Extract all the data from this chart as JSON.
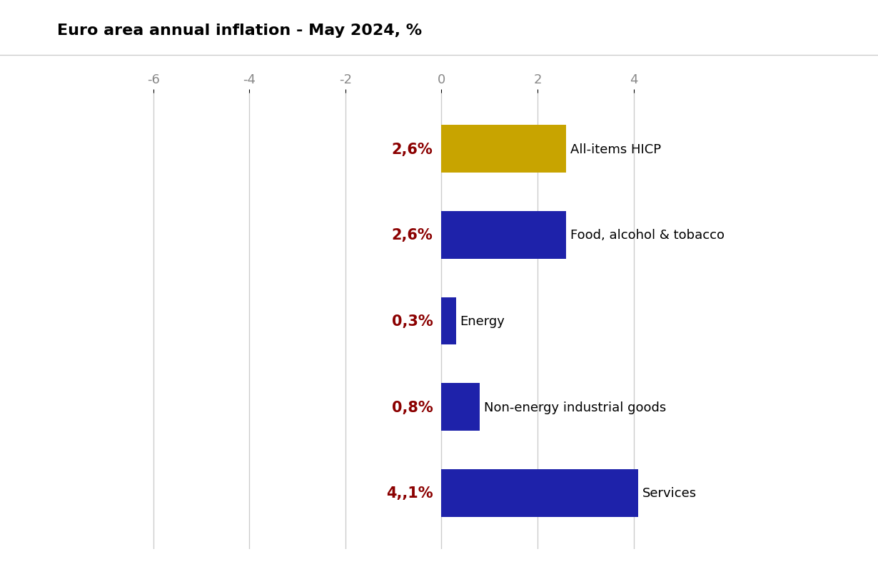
{
  "title": "Euro area annual inflation - May 2024, %",
  "categories": [
    "All-items HICP",
    "Food, alcohol & tobacco",
    "Energy",
    "Non-energy industrial goods",
    "Services"
  ],
  "values": [
    2.6,
    2.6,
    0.3,
    0.8,
    4.1
  ],
  "labels": [
    "2,6%",
    "2,6%",
    "0,3%",
    "0,8%",
    "4,,1%"
  ],
  "bar_colors": [
    "#C8A400",
    "#1E22AA",
    "#1E22AA",
    "#1E22AA",
    "#1E22AA"
  ],
  "label_color": "#8B0000",
  "xlim": [
    -7,
    5.8
  ],
  "xticks": [
    -6,
    -4,
    -2,
    0,
    2,
    4
  ],
  "background_color": "#FFFFFF",
  "title_fontsize": 16,
  "label_fontsize": 15,
  "annotation_fontsize": 13,
  "grid_color": "#CCCCCC"
}
